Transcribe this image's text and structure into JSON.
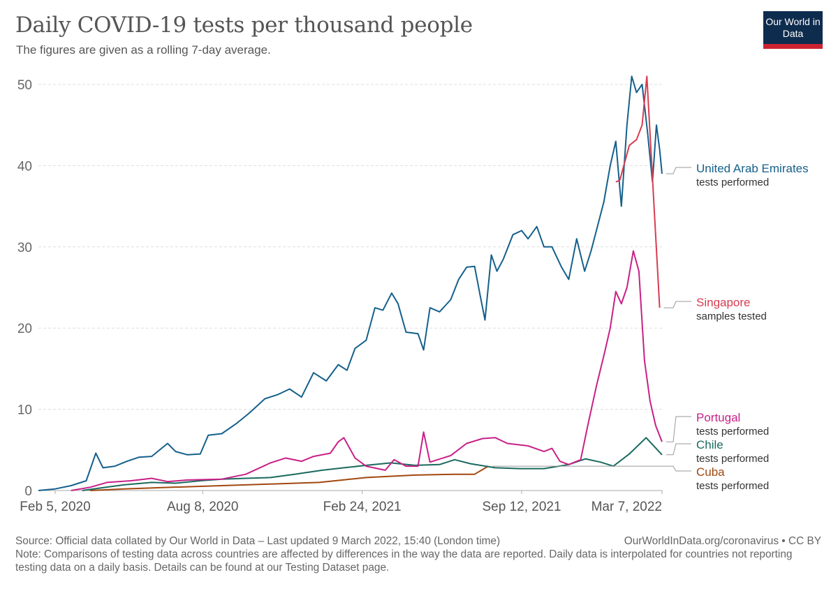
{
  "header": {
    "title": "Daily COVID-19 tests per thousand people",
    "subtitle": "The figures are given as a rolling 7-day average.",
    "logo_text": "Our World in Data"
  },
  "footer": {
    "source": "Source: Official data collated by Our World in Data – Last updated 9 March 2022, 15:40 (London time)",
    "url": "OurWorldInData.org/coronavirus • CC BY",
    "note": "Note: Comparisons of testing data across countries are affected by differences in the way the data are reported. Daily data is interpolated for countries not reporting testing data on a daily basis. Details can be found at our Testing Dataset page."
  },
  "chart_data": {
    "type": "line",
    "title": "Daily COVID-19 tests per thousand people",
    "subtitle": "The figures are given as a rolling 7-day average.",
    "xlabel": "",
    "ylabel": "",
    "x_axis": "date",
    "xlim": [
      "2020-01-15",
      "2022-03-07"
    ],
    "ylim": [
      0,
      52
    ],
    "y_ticks": [
      0,
      10,
      20,
      30,
      40,
      50
    ],
    "x_ticks": [
      {
        "date": "2020-02-05",
        "label": "Feb 5, 2020"
      },
      {
        "date": "2020-08-08",
        "label": "Aug 8, 2020"
      },
      {
        "date": "2021-02-24",
        "label": "Feb 24, 2021"
      },
      {
        "date": "2021-09-12",
        "label": "Sep 12, 2021"
      },
      {
        "date": "2022-03-07",
        "label": "Mar 7, 2022"
      }
    ],
    "grid": "horizontal dashed",
    "legend": "right, labels at line ends",
    "series": [
      {
        "name": "United Arab Emirates",
        "sublabel": "tests performed",
        "color": "#15608b",
        "points": [
          [
            "2020-01-15",
            0
          ],
          [
            "2020-02-05",
            0.2
          ],
          [
            "2020-02-25",
            0.6
          ],
          [
            "2020-03-15",
            1.2
          ],
          [
            "2020-03-27",
            4.6
          ],
          [
            "2020-04-05",
            2.8
          ],
          [
            "2020-04-20",
            3.0
          ],
          [
            "2020-05-05",
            3.6
          ],
          [
            "2020-05-20",
            4.1
          ],
          [
            "2020-06-05",
            4.2
          ],
          [
            "2020-06-25",
            5.8
          ],
          [
            "2020-07-05",
            4.8
          ],
          [
            "2020-07-20",
            4.4
          ],
          [
            "2020-08-05",
            4.5
          ],
          [
            "2020-08-15",
            6.8
          ],
          [
            "2020-09-01",
            7.0
          ],
          [
            "2020-09-20",
            8.3
          ],
          [
            "2020-10-05",
            9.5
          ],
          [
            "2020-10-25",
            11.3
          ],
          [
            "2020-11-10",
            11.8
          ],
          [
            "2020-11-25",
            12.5
          ],
          [
            "2020-12-10",
            11.5
          ],
          [
            "2020-12-25",
            14.5
          ],
          [
            "2021-01-10",
            13.5
          ],
          [
            "2021-01-25",
            15.5
          ],
          [
            "2021-02-05",
            14.8
          ],
          [
            "2021-02-15",
            17.5
          ],
          [
            "2021-03-01",
            18.5
          ],
          [
            "2021-03-12",
            22.5
          ],
          [
            "2021-03-22",
            22.2
          ],
          [
            "2021-04-02",
            24.3
          ],
          [
            "2021-04-10",
            23.0
          ],
          [
            "2021-04-20",
            19.5
          ],
          [
            "2021-05-05",
            19.3
          ],
          [
            "2021-05-12",
            17.3
          ],
          [
            "2021-05-20",
            22.5
          ],
          [
            "2021-06-01",
            22.0
          ],
          [
            "2021-06-15",
            23.5
          ],
          [
            "2021-06-25",
            26.0
          ],
          [
            "2021-07-05",
            27.5
          ],
          [
            "2021-07-15",
            27.6
          ],
          [
            "2021-07-22",
            24.0
          ],
          [
            "2021-07-28",
            21.0
          ],
          [
            "2021-08-05",
            29.0
          ],
          [
            "2021-08-12",
            27.0
          ],
          [
            "2021-08-20",
            28.5
          ],
          [
            "2021-09-01",
            31.5
          ],
          [
            "2021-09-12",
            32.0
          ],
          [
            "2021-09-20",
            31.0
          ],
          [
            "2021-10-01",
            32.5
          ],
          [
            "2021-10-10",
            30.0
          ],
          [
            "2021-10-20",
            30.0
          ],
          [
            "2021-11-01",
            27.5
          ],
          [
            "2021-11-10",
            26.0
          ],
          [
            "2021-11-20",
            31.0
          ],
          [
            "2021-11-30",
            27.0
          ],
          [
            "2021-12-08",
            29.5
          ],
          [
            "2021-12-16",
            32.5
          ],
          [
            "2021-12-24",
            35.5
          ],
          [
            "2022-01-01",
            40.0
          ],
          [
            "2022-01-08",
            43.0
          ],
          [
            "2022-01-15",
            35.0
          ],
          [
            "2022-01-22",
            45.0
          ],
          [
            "2022-01-28",
            51.0
          ],
          [
            "2022-02-03",
            49.0
          ],
          [
            "2022-02-10",
            50.0
          ],
          [
            "2022-02-17",
            44.0
          ],
          [
            "2022-02-23",
            38.0
          ],
          [
            "2022-02-28",
            45.0
          ],
          [
            "2022-03-04",
            42.0
          ],
          [
            "2022-03-07",
            39.0
          ]
        ]
      },
      {
        "name": "Singapore",
        "sublabel": "samples tested",
        "color": "#d73c50",
        "points": [
          [
            "2022-01-08",
            38.0
          ],
          [
            "2022-01-13",
            38.2
          ],
          [
            "2022-01-25",
            42.5
          ],
          [
            "2022-02-03",
            43.2
          ],
          [
            "2022-02-10",
            45.0
          ],
          [
            "2022-02-16",
            51.0
          ],
          [
            "2022-03-04",
            22.5
          ]
        ]
      },
      {
        "name": "Portugal",
        "sublabel": "tests performed",
        "color": "#c82087",
        "points": [
          [
            "2020-02-25",
            0
          ],
          [
            "2020-03-20",
            0.4
          ],
          [
            "2020-04-10",
            1.0
          ],
          [
            "2020-05-10",
            1.2
          ],
          [
            "2020-06-05",
            1.5
          ],
          [
            "2020-06-25",
            1.1
          ],
          [
            "2020-07-20",
            1.3
          ],
          [
            "2020-09-01",
            1.4
          ],
          [
            "2020-10-01",
            2.0
          ],
          [
            "2020-11-01",
            3.4
          ],
          [
            "2020-11-20",
            4.0
          ],
          [
            "2020-12-10",
            3.6
          ],
          [
            "2020-12-25",
            4.2
          ],
          [
            "2021-01-15",
            4.6
          ],
          [
            "2021-01-25",
            6.0
          ],
          [
            "2021-02-01",
            6.5
          ],
          [
            "2021-02-15",
            4.0
          ],
          [
            "2021-03-01",
            3.0
          ],
          [
            "2021-03-25",
            2.5
          ],
          [
            "2021-04-05",
            3.8
          ],
          [
            "2021-04-20",
            3.0
          ],
          [
            "2021-05-05",
            3.0
          ],
          [
            "2021-05-12",
            7.2
          ],
          [
            "2021-05-20",
            3.5
          ],
          [
            "2021-06-15",
            4.3
          ],
          [
            "2021-07-05",
            5.8
          ],
          [
            "2021-07-25",
            6.4
          ],
          [
            "2021-08-10",
            6.5
          ],
          [
            "2021-08-25",
            5.8
          ],
          [
            "2021-09-20",
            5.5
          ],
          [
            "2021-10-10",
            4.8
          ],
          [
            "2021-10-20",
            5.2
          ],
          [
            "2021-10-30",
            3.6
          ],
          [
            "2021-11-10",
            3.2
          ],
          [
            "2021-11-25",
            3.8
          ],
          [
            "2021-12-05",
            8.5
          ],
          [
            "2021-12-15",
            13.0
          ],
          [
            "2021-12-25",
            17.0
          ],
          [
            "2022-01-01",
            20.0
          ],
          [
            "2022-01-08",
            24.5
          ],
          [
            "2022-01-15",
            23.0
          ],
          [
            "2022-01-22",
            25.0
          ],
          [
            "2022-01-30",
            29.5
          ],
          [
            "2022-02-06",
            27.0
          ],
          [
            "2022-02-13",
            16.0
          ],
          [
            "2022-02-20",
            11.0
          ],
          [
            "2022-02-27",
            8.0
          ],
          [
            "2022-03-07",
            6.0
          ]
        ]
      },
      {
        "name": "Chile",
        "sublabel": "tests performed",
        "color": "#1a6a5e",
        "points": [
          [
            "2020-03-10",
            0
          ],
          [
            "2020-04-01",
            0.3
          ],
          [
            "2020-05-01",
            0.7
          ],
          [
            "2020-06-05",
            1.0
          ],
          [
            "2020-07-05",
            0.9
          ],
          [
            "2020-08-05",
            1.2
          ],
          [
            "2020-09-01",
            1.4
          ],
          [
            "2020-10-01",
            1.5
          ],
          [
            "2020-11-01",
            1.6
          ],
          [
            "2020-12-01",
            2.0
          ],
          [
            "2021-01-05",
            2.5
          ],
          [
            "2021-02-01",
            2.8
          ],
          [
            "2021-03-01",
            3.1
          ],
          [
            "2021-04-01",
            3.4
          ],
          [
            "2021-05-01",
            3.1
          ],
          [
            "2021-06-01",
            3.2
          ],
          [
            "2021-06-20",
            3.8
          ],
          [
            "2021-07-10",
            3.3
          ],
          [
            "2021-08-10",
            2.8
          ],
          [
            "2021-09-10",
            2.7
          ],
          [
            "2021-10-10",
            2.7
          ],
          [
            "2021-11-10",
            3.2
          ],
          [
            "2021-12-01",
            3.9
          ],
          [
            "2021-12-20",
            3.5
          ],
          [
            "2022-01-05",
            3.0
          ],
          [
            "2022-01-25",
            4.5
          ],
          [
            "2022-02-15",
            6.5
          ],
          [
            "2022-03-07",
            4.4
          ]
        ]
      },
      {
        "name": "Cuba",
        "sublabel": "tests performed",
        "color": "#a2470f",
        "points": [
          [
            "2020-03-20",
            0
          ],
          [
            "2020-05-01",
            0.2
          ],
          [
            "2020-07-01",
            0.4
          ],
          [
            "2020-09-01",
            0.6
          ],
          [
            "2020-11-01",
            0.8
          ],
          [
            "2021-01-01",
            1.0
          ],
          [
            "2021-03-01",
            1.6
          ],
          [
            "2021-05-01",
            1.9
          ],
          [
            "2021-06-20",
            2.0
          ],
          [
            "2021-07-15",
            2.0
          ],
          [
            "2021-08-01",
            3.0
          ]
        ]
      }
    ]
  }
}
